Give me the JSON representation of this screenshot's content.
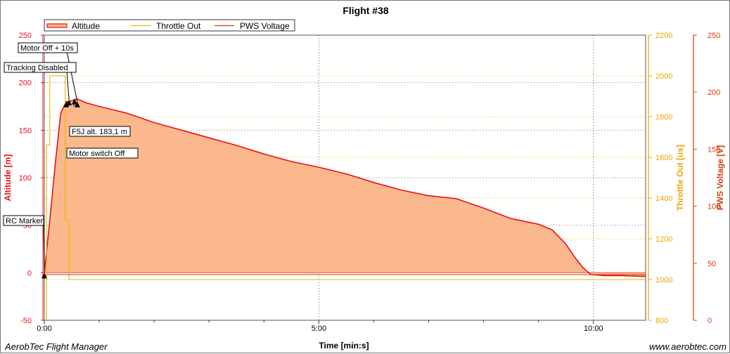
{
  "chart_data": {
    "type": "line",
    "title": "Flight #38",
    "xlabel": "Time [min:s]",
    "x_ticks": [
      "0:00",
      "5:00",
      "10:00"
    ],
    "x_tick_minutes": [
      0,
      5,
      10
    ],
    "xlim_minutes": [
      0,
      10.95
    ],
    "axes": {
      "altitude": {
        "label": "Altitude [m]",
        "color": "#e8101a",
        "ylim": [
          -50,
          250
        ],
        "ticks": [
          -50,
          0,
          50,
          100,
          150,
          200,
          250
        ]
      },
      "throttle": {
        "label": "Throttle Out [us]",
        "color": "#f0a400",
        "ylim": [
          800,
          2200
        ],
        "ticks": [
          800,
          1000,
          1200,
          1400,
          1600,
          1800,
          2000,
          2200
        ]
      },
      "voltage": {
        "label": "PWS Voltage [V]",
        "color": "#d2400c",
        "ylim": [
          0,
          250
        ],
        "ticks": [
          0,
          50,
          100,
          150,
          200,
          250
        ]
      }
    },
    "grid": true,
    "legend_position": "top-left",
    "series": [
      {
        "name": "Altitude",
        "axis": "altitude",
        "color": "#e8101a",
        "fill": "#fbb88c",
        "x_minutes": [
          0,
          0.1,
          0.2,
          0.3,
          0.4,
          0.5,
          0.6,
          0.75,
          1.0,
          1.5,
          2.0,
          2.5,
          3.0,
          3.5,
          4.0,
          4.5,
          5.0,
          5.5,
          6.0,
          6.5,
          7.0,
          7.5,
          8.0,
          8.5,
          9.0,
          9.25,
          9.5,
          9.65,
          9.8,
          9.95,
          10.2,
          10.5,
          10.95
        ],
        "values": [
          0,
          55,
          115,
          168,
          180,
          181,
          183,
          179,
          175,
          168,
          158,
          150,
          142,
          134,
          125,
          117,
          111,
          104,
          95,
          87,
          81,
          78,
          68,
          57,
          51,
          45,
          30,
          17,
          6,
          -2,
          -3,
          -3,
          -4
        ]
      },
      {
        "name": "Throttle Out",
        "axis": "throttle",
        "color": "#e6b800",
        "x_minutes": [
          0,
          0.04,
          0.04,
          0.1,
          0.1,
          0.38,
          0.38,
          0.45,
          0.45,
          10.95
        ],
        "values": [
          800,
          800,
          1660,
          1660,
          2000,
          2000,
          1290,
          1290,
          1000,
          1000
        ]
      },
      {
        "name": "PWS Voltage",
        "axis": "voltage",
        "color": "#d2400c",
        "x_minutes": [
          0,
          10.95
        ],
        "values": [
          40,
          40
        ]
      }
    ],
    "annotations": [
      {
        "label": "Motor Off + 10s",
        "x_minutes": 0.6,
        "value": 180
      },
      {
        "label": "Tracking Disabled",
        "x_minutes": 0.45,
        "value": 182
      },
      {
        "label": "F5J alt. 183,1 m",
        "x_minutes": 0.55,
        "value": 183
      },
      {
        "label": "Motor switch Off",
        "x_minutes": 0.4,
        "value": 180
      },
      {
        "label": "RC Marker",
        "x_minutes": 0,
        "value": 0
      }
    ]
  },
  "footer": {
    "left": "AerobTec Flight Manager",
    "right": "www.aerobtec.com"
  }
}
